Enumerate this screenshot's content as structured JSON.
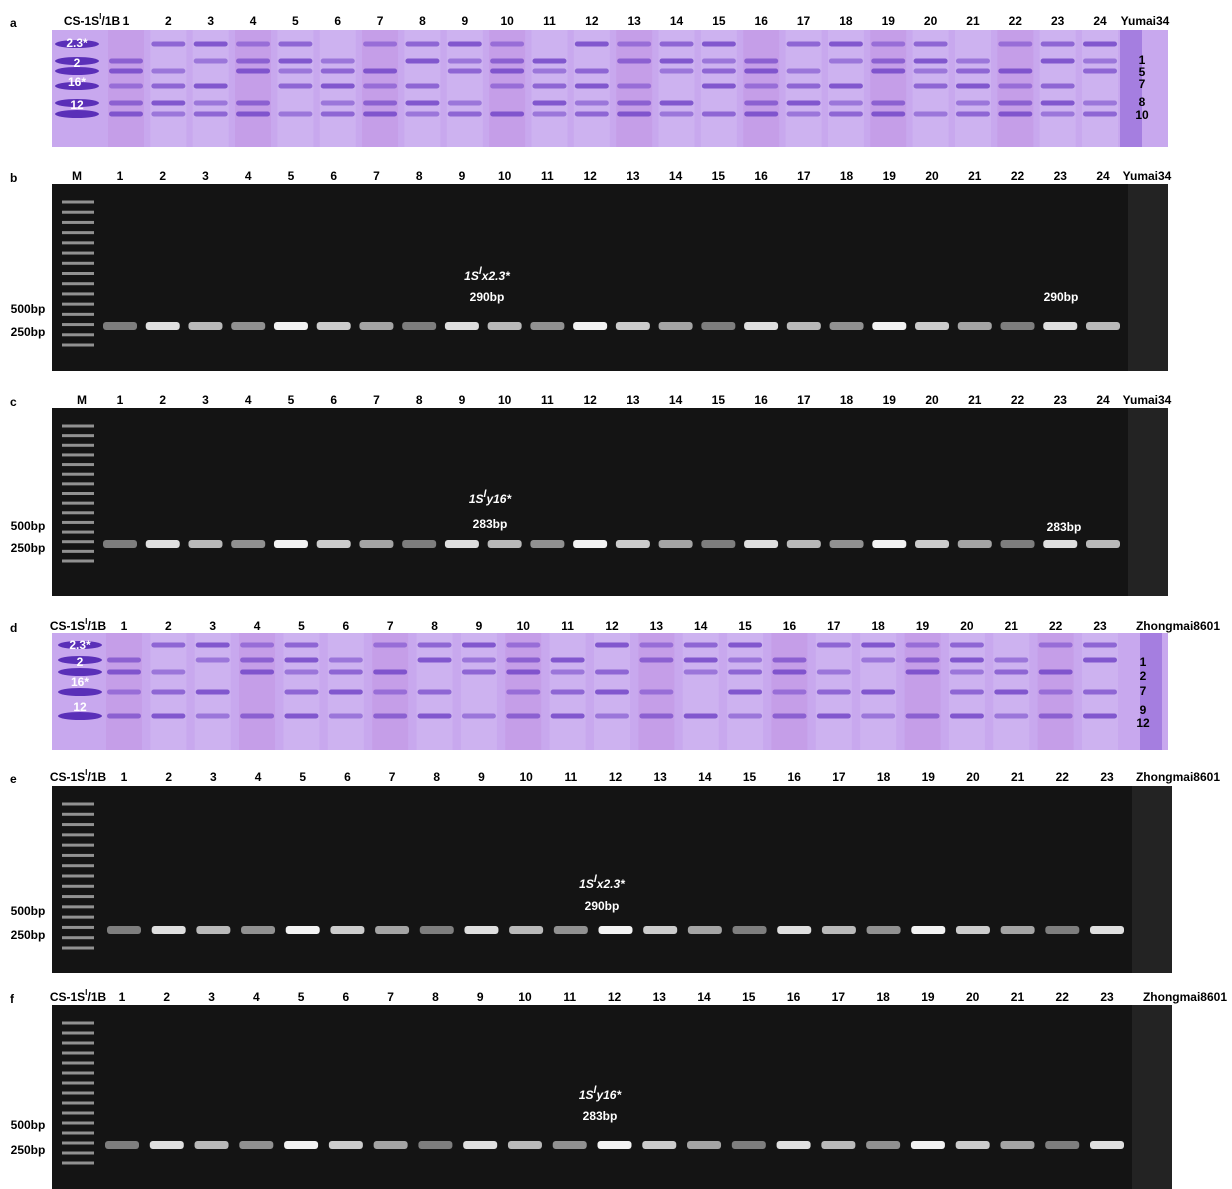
{
  "figure": {
    "panels": [
      {
        "letter": "a",
        "kind": "sds",
        "sample_label": [
          "CS-1S",
          "l",
          "/1B"
        ],
        "lanes": [
          "1",
          "2",
          "3",
          "4",
          "5",
          "6",
          "7",
          "8",
          "9",
          "10",
          "11",
          "12",
          "13",
          "14",
          "15",
          "16",
          "17",
          "18",
          "19",
          "20",
          "21",
          "22",
          "23",
          "24"
        ],
        "control": "Yumai34",
        "left_bands": [
          "2.3*",
          "2",
          "16*",
          "12"
        ],
        "right_bands": [
          "1",
          "5",
          "7",
          "8",
          "10"
        ]
      },
      {
        "letter": "b",
        "kind": "pcr",
        "marker": "M",
        "lanes": [
          "1",
          "2",
          "3",
          "4",
          "5",
          "6",
          "7",
          "8",
          "9",
          "10",
          "11",
          "12",
          "13",
          "14",
          "15",
          "16",
          "17",
          "18",
          "19",
          "20",
          "21",
          "22",
          "23",
          "24"
        ],
        "control": "Yumai34",
        "size_labels": [
          "500bp",
          "250bp"
        ],
        "gene": [
          "1S",
          "l",
          "x2.3*"
        ],
        "product": "290bp",
        "product_right": "290bp"
      },
      {
        "letter": "c",
        "kind": "pcr",
        "marker": "M",
        "lanes": [
          "1",
          "2",
          "3",
          "4",
          "5",
          "6",
          "7",
          "8",
          "9",
          "10",
          "11",
          "12",
          "13",
          "14",
          "15",
          "16",
          "17",
          "18",
          "19",
          "20",
          "21",
          "22",
          "23",
          "24"
        ],
        "control": "Yumai34",
        "size_labels": [
          "500bp",
          "250bp"
        ],
        "gene": [
          "1S",
          "l",
          "y16*"
        ],
        "product": "283bp",
        "product_right": "283bp"
      },
      {
        "letter": "d",
        "kind": "sds",
        "sample_label": [
          "CS-1S",
          "l",
          "/1B"
        ],
        "lanes": [
          "1",
          "2",
          "3",
          "4",
          "5",
          "6",
          "7",
          "8",
          "9",
          "10",
          "11",
          "12",
          "13",
          "14",
          "15",
          "16",
          "17",
          "18",
          "19",
          "20",
          "21",
          "22",
          "23"
        ],
        "control": "Zhongmai8601",
        "left_bands": [
          "2.3*",
          "2",
          "16*",
          "12"
        ],
        "right_bands": [
          "1",
          "2",
          "7",
          "9",
          "12"
        ]
      },
      {
        "letter": "e",
        "kind": "pcr",
        "sample_label": [
          "CS-1S",
          "l",
          "/1B"
        ],
        "lanes": [
          "1",
          "2",
          "3",
          "4",
          "5",
          "6",
          "7",
          "8",
          "9",
          "10",
          "11",
          "12",
          "13",
          "14",
          "15",
          "16",
          "17",
          "18",
          "19",
          "20",
          "21",
          "22",
          "23"
        ],
        "control": "Zhongmai8601",
        "size_labels": [
          "500bp",
          "250bp"
        ],
        "gene": [
          "1S",
          "l",
          "x2.3*"
        ],
        "product": "290bp"
      },
      {
        "letter": "f",
        "kind": "pcr",
        "sample_label": [
          "CS-1S",
          "l",
          "/1B"
        ],
        "lanes": [
          "1",
          "2",
          "3",
          "4",
          "5",
          "6",
          "7",
          "8",
          "9",
          "10",
          "11",
          "12",
          "13",
          "14",
          "15",
          "16",
          "17",
          "18",
          "19",
          "20",
          "21",
          "22",
          "23"
        ],
        "control": "Zhongmai8601",
        "size_labels": [
          "500bp",
          "250bp"
        ],
        "gene": [
          "1S",
          "l",
          "y16*"
        ],
        "product": "283bp"
      }
    ]
  }
}
